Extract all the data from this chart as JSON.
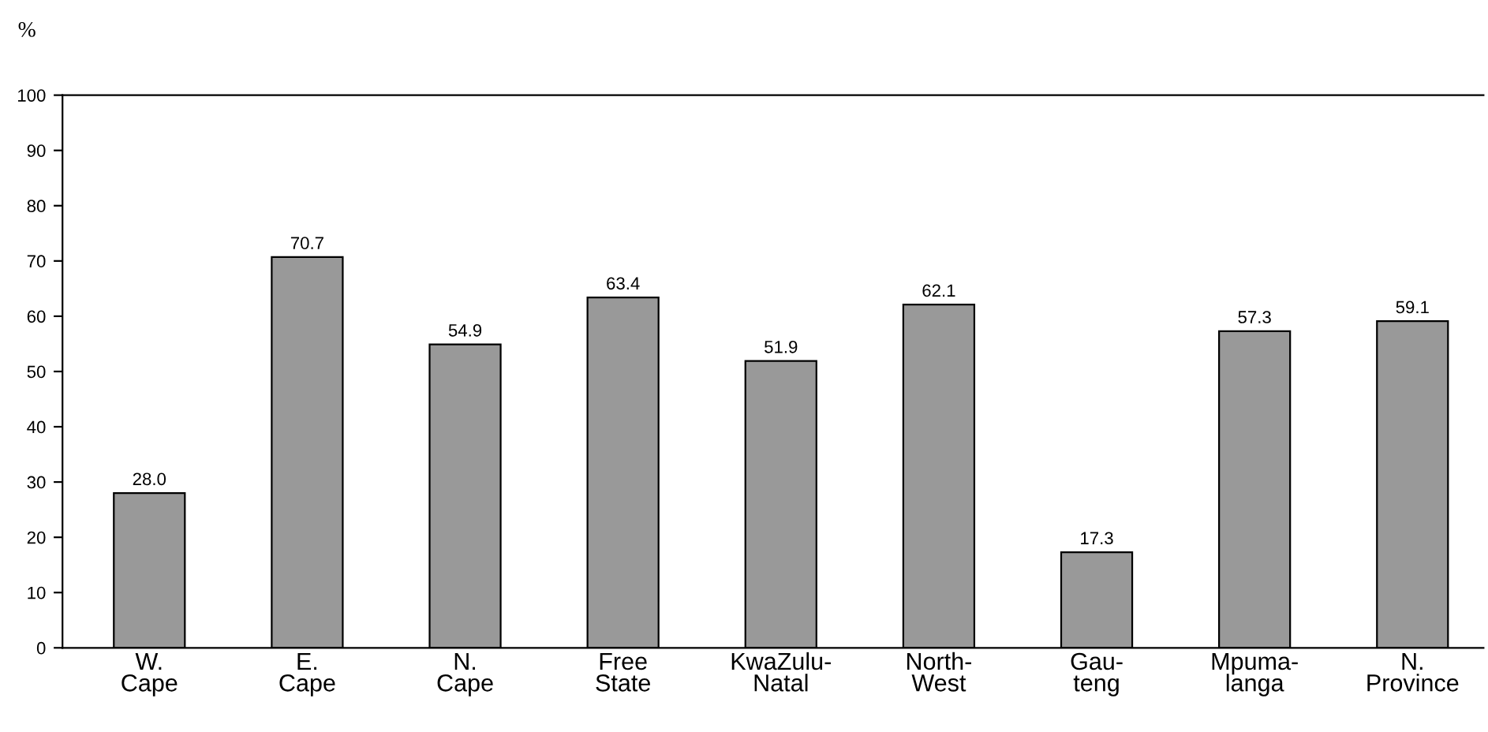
{
  "chart_data": {
    "type": "bar",
    "ylabel": "%",
    "categories": [
      "W.\nCape",
      "E.\nCape",
      "N.\nCape",
      "Free\nState",
      "KwaZulu-\nNatal",
      "North-\nWest",
      "Gau-\nteng",
      "Mpuma-\nlanga",
      "N.\nProvince"
    ],
    "values": [
      28.0,
      70.7,
      54.9,
      63.4,
      51.9,
      62.1,
      17.3,
      57.3,
      59.1
    ],
    "color": "#999999",
    "ylim": [
      0,
      100
    ],
    "yticks": [
      0,
      10,
      20,
      30,
      40,
      50,
      60,
      70,
      80,
      90,
      100
    ],
    "value_labels": [
      "28.0",
      "70.7",
      "54.9",
      "63.4",
      "51.9",
      "62.1",
      "17.3",
      "57.3",
      "59.1"
    ],
    "grid": false,
    "legend": false
  }
}
